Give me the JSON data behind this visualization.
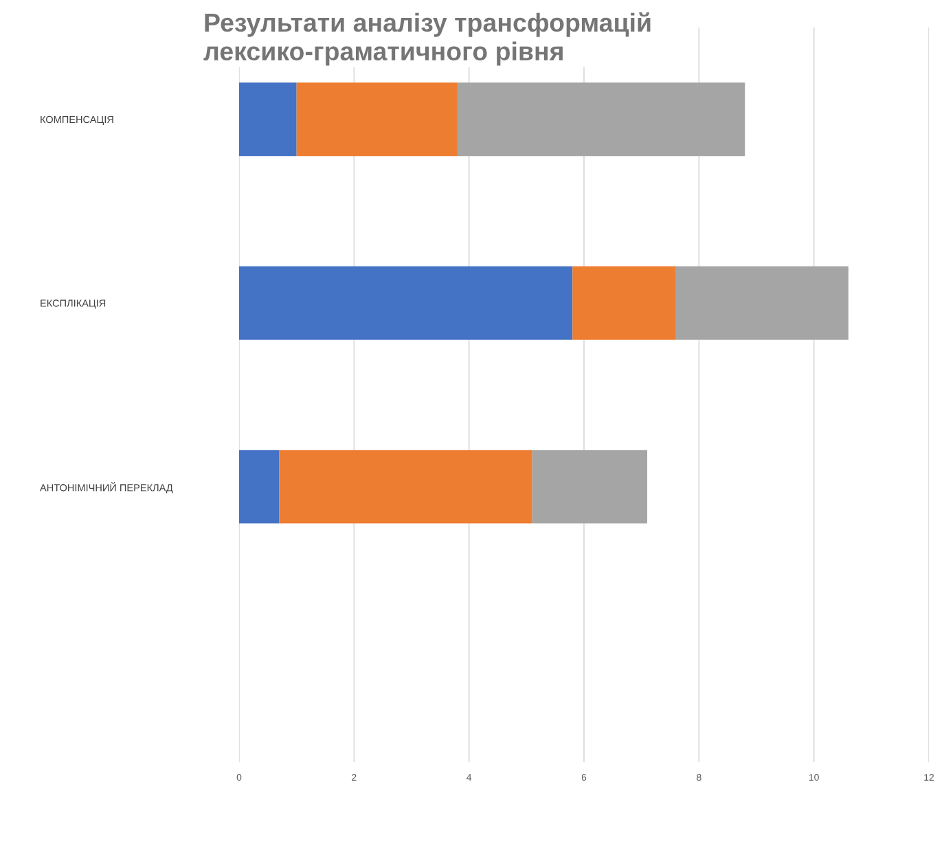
{
  "chart_data": {
    "type": "bar",
    "orientation": "horizontal",
    "stacked": true,
    "title": "Результати аналізу трансформацій\nлексико-граматичного рівня",
    "categories": [
      "КОМПЕНСАЦІЯ",
      "ЕКСПЛІКАЦІЯ",
      "АНТОНІМІЧНИЙ ПЕРЕКЛАД",
      null
    ],
    "series": [
      {
        "color": "#4472c4",
        "values": [
          1.0,
          5.8,
          0.7,
          null
        ]
      },
      {
        "color": "#ed7d31",
        "values": [
          2.8,
          1.8,
          4.4,
          null
        ]
      },
      {
        "color": "#a5a5a5",
        "values": [
          5.0,
          3.0,
          2.0,
          null
        ]
      }
    ],
    "xlim": [
      0,
      12
    ],
    "xticks": [
      0,
      2,
      4,
      6,
      8,
      10,
      12
    ],
    "grid": "x",
    "legend": false
  }
}
